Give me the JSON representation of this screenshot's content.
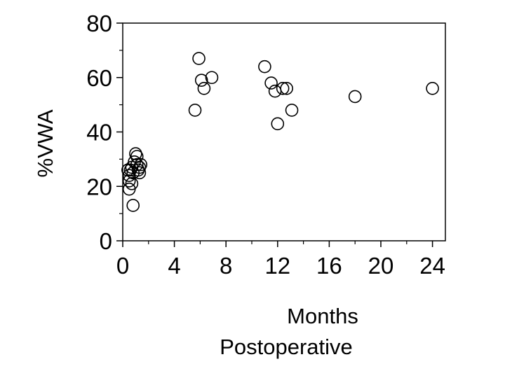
{
  "chart_data": {
    "type": "scatter",
    "title": "",
    "xlabel_line1": "Months",
    "xlabel_line2": "Postoperative",
    "ylabel": "%VWA",
    "xlim": [
      0,
      25
    ],
    "ylim": [
      0,
      80
    ],
    "x_ticks": [
      0,
      4,
      8,
      12,
      16,
      20,
      24
    ],
    "x_tick_labels": [
      "0",
      "4",
      "8",
      "12",
      "16",
      "20",
      "24"
    ],
    "x_minor_ticks": [
      2,
      6,
      10,
      14,
      18,
      22
    ],
    "y_ticks": [
      0,
      20,
      40,
      60,
      80
    ],
    "y_tick_labels": [
      "0",
      "20",
      "40",
      "60",
      "80"
    ],
    "y_minor_ticks": [
      10,
      30,
      50,
      70
    ],
    "grid": false,
    "legend": "none",
    "marker": "open-circle",
    "points": [
      {
        "x": 0.4,
        "y": 26
      },
      {
        "x": 0.5,
        "y": 24
      },
      {
        "x": 0.5,
        "y": 22
      },
      {
        "x": 0.5,
        "y": 19
      },
      {
        "x": 0.6,
        "y": 26
      },
      {
        "x": 0.7,
        "y": 27
      },
      {
        "x": 0.7,
        "y": 21
      },
      {
        "x": 0.8,
        "y": 25
      },
      {
        "x": 0.8,
        "y": 13
      },
      {
        "x": 0.9,
        "y": 29
      },
      {
        "x": 1.0,
        "y": 32
      },
      {
        "x": 1.1,
        "y": 31
      },
      {
        "x": 1.1,
        "y": 28
      },
      {
        "x": 1.2,
        "y": 26
      },
      {
        "x": 1.3,
        "y": 27
      },
      {
        "x": 1.3,
        "y": 25
      },
      {
        "x": 1.4,
        "y": 28
      },
      {
        "x": 5.6,
        "y": 48
      },
      {
        "x": 5.9,
        "y": 67
      },
      {
        "x": 6.1,
        "y": 59
      },
      {
        "x": 6.3,
        "y": 56
      },
      {
        "x": 6.9,
        "y": 60
      },
      {
        "x": 11.0,
        "y": 64
      },
      {
        "x": 11.5,
        "y": 58
      },
      {
        "x": 11.8,
        "y": 55
      },
      {
        "x": 12.0,
        "y": 43
      },
      {
        "x": 12.4,
        "y": 56
      },
      {
        "x": 12.7,
        "y": 56
      },
      {
        "x": 13.1,
        "y": 48
      },
      {
        "x": 18.0,
        "y": 53
      },
      {
        "x": 24.0,
        "y": 56
      }
    ]
  }
}
